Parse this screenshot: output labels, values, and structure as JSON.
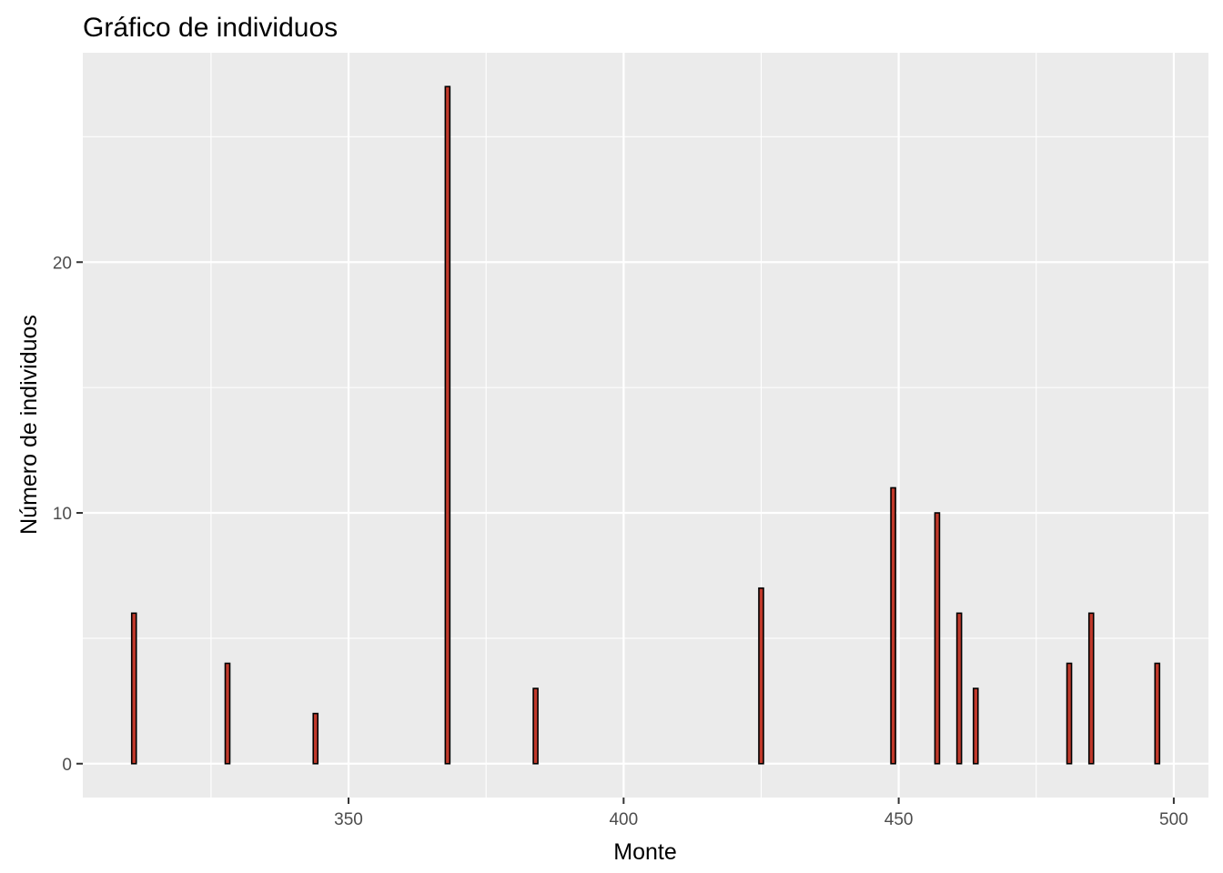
{
  "chart_data": {
    "type": "bar",
    "title": "Gráfico de individuos",
    "xlabel": "Monte",
    "ylabel": "Número de individuos",
    "x": [
      311,
      328,
      344,
      368,
      384,
      425,
      449,
      457,
      461,
      464,
      481,
      485,
      497
    ],
    "values": [
      6,
      4,
      2,
      27,
      3,
      7,
      11,
      10,
      6,
      3,
      4,
      6,
      4
    ],
    "xlim": [
      301.7,
      506.3
    ],
    "ylim": [
      -1.35,
      28.35
    ],
    "x_ticks": [
      "350",
      "400",
      "450",
      "500"
    ],
    "y_ticks": [
      "0",
      "10",
      "20"
    ],
    "grid": true,
    "colors": {
      "panel": "#ebebeb",
      "grid": "#ffffff",
      "bar_fill": "#c0392b",
      "bar_outline": "#000000",
      "tick_text": "#4d4d4d"
    }
  }
}
